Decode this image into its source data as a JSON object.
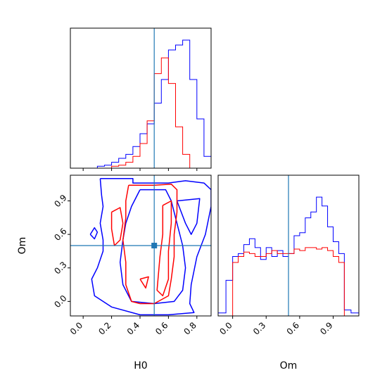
{
  "chart_data": {
    "type": "corner",
    "parameters": [
      "H0",
      "Om"
    ],
    "truths": {
      "H0": 0.5,
      "Om": 0.5
    },
    "colors": {
      "blue": "#0000ff",
      "red": "#ff0000",
      "truth": "#1f77b4"
    },
    "axes": {
      "H0": {
        "label": "H0",
        "range": [
          -0.09,
          0.9
        ],
        "ticks": [
          0.0,
          0.2,
          0.4,
          0.6,
          0.8
        ],
        "tick_labels": [
          "0.0",
          "0.2",
          "0.4",
          "0.6",
          "0.8"
        ]
      },
      "Om": {
        "label": "Om",
        "range": [
          -0.13,
          1.13
        ],
        "ticks": [
          0.0,
          0.3,
          0.6,
          0.9
        ],
        "tick_labels": [
          "0.0",
          "0.3",
          "0.6",
          "0.9"
        ]
      }
    },
    "hist_H0": {
      "blue": {
        "edges": [
          0.1,
          0.15,
          0.2,
          0.25,
          0.3,
          0.35,
          0.4,
          0.45,
          0.5,
          0.55,
          0.6,
          0.65,
          0.7,
          0.75,
          0.8,
          0.85,
          0.9
        ],
        "values": [
          2,
          3,
          6,
          10,
          14,
          22,
          35,
          45,
          66,
          90,
          120,
          125,
          130,
          90,
          50,
          12
        ]
      },
      "red": {
        "edges": [
          0.2,
          0.25,
          0.3,
          0.35,
          0.4,
          0.45,
          0.5,
          0.55,
          0.6,
          0.65,
          0.7,
          0.75
        ],
        "values": [
          2,
          3,
          6,
          12,
          25,
          48,
          96,
          112,
          86,
          42,
          14
        ]
      },
      "ymax": 135
    },
    "hist_Om": {
      "blue": {
        "edges": [
          -0.13,
          -0.06,
          0.0,
          0.05,
          0.1,
          0.15,
          0.2,
          0.25,
          0.3,
          0.35,
          0.4,
          0.45,
          0.5,
          0.55,
          0.6,
          0.65,
          0.7,
          0.75,
          0.8,
          0.85,
          0.9,
          0.95,
          1.0,
          1.06,
          1.13
        ],
        "values": [
          2,
          24,
          40,
          42,
          48,
          52,
          46,
          38,
          46,
          40,
          44,
          40,
          42,
          54,
          56,
          66,
          70,
          80,
          74,
          60,
          50,
          42,
          4,
          2
        ]
      },
      "red": {
        "edges": [
          0.0,
          0.05,
          0.1,
          0.15,
          0.2,
          0.25,
          0.3,
          0.35,
          0.4,
          0.45,
          0.5,
          0.55,
          0.6,
          0.65,
          0.7,
          0.75,
          0.8,
          0.85,
          0.9,
          0.95,
          1.0
        ],
        "values": [
          36,
          40,
          43,
          42,
          40,
          40,
          42,
          44,
          42,
          42,
          42,
          45,
          44,
          46,
          46,
          45,
          46,
          44,
          40,
          36
        ]
      },
      "ymax": 90
    },
    "contours": {
      "blue": [
        [
          [
            0.12,
            1.1
          ],
          [
            0.35,
            1.1
          ],
          [
            0.35,
            1.06
          ],
          [
            0.6,
            1.06
          ],
          [
            0.72,
            1.08
          ],
          [
            0.85,
            1.06
          ],
          [
            0.9,
            1.0
          ],
          [
            0.9,
            0.85
          ],
          [
            0.86,
            0.6
          ],
          [
            0.8,
            0.4
          ],
          [
            0.76,
            0.15
          ],
          [
            0.75,
            -0.02
          ],
          [
            0.78,
            -0.1
          ],
          [
            0.6,
            -0.12
          ],
          [
            0.4,
            -0.12
          ],
          [
            0.2,
            -0.05
          ],
          [
            0.08,
            0.05
          ],
          [
            0.06,
            0.2
          ],
          [
            0.1,
            0.3
          ],
          [
            0.14,
            0.45
          ],
          [
            0.14,
            0.55
          ],
          [
            0.12,
            0.7
          ],
          [
            0.14,
            0.85
          ],
          [
            0.13,
            0.95
          ],
          [
            0.12,
            1.1
          ]
        ],
        [
          [
            0.4,
            1.0
          ],
          [
            0.58,
            1.0
          ],
          [
            0.62,
            0.9
          ],
          [
            0.66,
            0.7
          ],
          [
            0.7,
            0.5
          ],
          [
            0.72,
            0.3
          ],
          [
            0.7,
            0.1
          ],
          [
            0.64,
            0.0
          ],
          [
            0.5,
            -0.02
          ],
          [
            0.34,
            0.0
          ],
          [
            0.28,
            0.15
          ],
          [
            0.26,
            0.35
          ],
          [
            0.28,
            0.55
          ],
          [
            0.3,
            0.7
          ],
          [
            0.34,
            0.85
          ],
          [
            0.4,
            1.0
          ]
        ],
        [
          [
            0.05,
            0.6
          ],
          [
            0.08,
            0.66
          ],
          [
            0.1,
            0.62
          ],
          [
            0.08,
            0.56
          ],
          [
            0.05,
            0.6
          ]
        ],
        [
          [
            0.66,
            0.9
          ],
          [
            0.82,
            0.92
          ],
          [
            0.8,
            0.7
          ],
          [
            0.76,
            0.6
          ],
          [
            0.72,
            0.7
          ],
          [
            0.66,
            0.9
          ]
        ]
      ],
      "red": [
        [
          [
            0.32,
            1.04
          ],
          [
            0.5,
            1.04
          ],
          [
            0.62,
            1.05
          ],
          [
            0.66,
            1.0
          ],
          [
            0.66,
            0.8
          ],
          [
            0.64,
            0.6
          ],
          [
            0.64,
            0.4
          ],
          [
            0.62,
            0.2
          ],
          [
            0.6,
            0.05
          ],
          [
            0.5,
            -0.02
          ],
          [
            0.4,
            -0.02
          ],
          [
            0.34,
            0.0
          ],
          [
            0.3,
            0.15
          ],
          [
            0.3,
            0.35
          ],
          [
            0.28,
            0.55
          ],
          [
            0.3,
            0.75
          ],
          [
            0.3,
            0.9
          ],
          [
            0.32,
            1.04
          ]
        ],
        [
          [
            0.2,
            0.8
          ],
          [
            0.26,
            0.84
          ],
          [
            0.28,
            0.7
          ],
          [
            0.26,
            0.55
          ],
          [
            0.22,
            0.5
          ],
          [
            0.2,
            0.65
          ],
          [
            0.2,
            0.8
          ]
        ],
        [
          [
            0.56,
            0.86
          ],
          [
            0.62,
            0.9
          ],
          [
            0.62,
            0.7
          ],
          [
            0.6,
            0.45
          ],
          [
            0.6,
            0.2
          ],
          [
            0.56,
            0.05
          ],
          [
            0.52,
            0.1
          ],
          [
            0.54,
            0.4
          ],
          [
            0.56,
            0.6
          ],
          [
            0.56,
            0.86
          ]
        ],
        [
          [
            0.4,
            0.2
          ],
          [
            0.46,
            0.22
          ],
          [
            0.44,
            0.12
          ],
          [
            0.4,
            0.2
          ]
        ]
      ]
    }
  }
}
